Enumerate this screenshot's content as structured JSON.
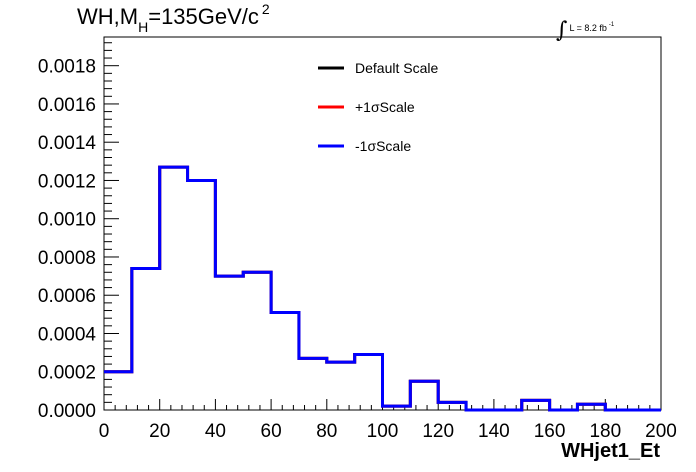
{
  "chart_data": {
    "type": "histogram",
    "title": {
      "prefix": "WH,M",
      "subscript": "H",
      "main": "=135GeV/c",
      "superscript": "2"
    },
    "luminosity": {
      "symbol": "∫",
      "text": "L = 8.2 fb",
      "superscript": "-1"
    },
    "xlabel": "WHjet1_Et",
    "ylabel": "",
    "xlim": [
      0,
      200
    ],
    "ylim": [
      0,
      0.00195
    ],
    "x_ticks": [
      0,
      20,
      40,
      60,
      80,
      100,
      120,
      140,
      160,
      180,
      200
    ],
    "x_tick_labels": [
      "0",
      "20",
      "40",
      "60",
      "80",
      "100",
      "120",
      "140",
      "160",
      "180",
      "200"
    ],
    "y_ticks": [
      0,
      0.0002,
      0.0004,
      0.0006,
      0.0008,
      0.001,
      0.0012,
      0.0014,
      0.0016,
      0.0018
    ],
    "y_tick_labels": [
      "0.0000",
      "0.0002",
      "0.0004",
      "0.0006",
      "0.0008",
      "0.0010",
      "0.0012",
      "0.0014",
      "0.0016",
      "0.0018"
    ],
    "bin_edges": [
      0,
      10,
      20,
      30,
      40,
      50,
      60,
      70,
      80,
      90,
      100,
      110,
      120,
      130,
      140,
      150,
      160,
      170,
      180,
      190,
      200
    ],
    "series": [
      {
        "name": "Default Scale",
        "color": "#000000",
        "values": [
          0.0002,
          0.00074,
          0.00127,
          0.0012,
          0.0007,
          0.00072,
          0.00051,
          0.00027,
          0.00025,
          0.00029,
          2e-05,
          0.00015,
          4e-05,
          0.0,
          0.0,
          5e-05,
          0.0,
          3e-05,
          0.0,
          0.0
        ]
      },
      {
        "name": "+1σScale",
        "color": "#ff0000",
        "values": [
          0.0002,
          0.00074,
          0.00127,
          0.0012,
          0.0007,
          0.00072,
          0.00051,
          0.00027,
          0.00025,
          0.00029,
          2e-05,
          0.00015,
          4e-05,
          0.0,
          0.0,
          5e-05,
          0.0,
          3e-05,
          0.0,
          0.0
        ]
      },
      {
        "name": "-1σScale",
        "color": "#0000ff",
        "values": [
          0.0002,
          0.00074,
          0.00127,
          0.0012,
          0.0007,
          0.00072,
          0.00051,
          0.00027,
          0.00025,
          0.00029,
          2e-05,
          0.00015,
          4e-05,
          0.0,
          0.0,
          5e-05,
          0.0,
          3e-05,
          0.0,
          0.0
        ]
      }
    ],
    "legend": {
      "placement": "top-center",
      "border": false
    },
    "grid": false
  }
}
